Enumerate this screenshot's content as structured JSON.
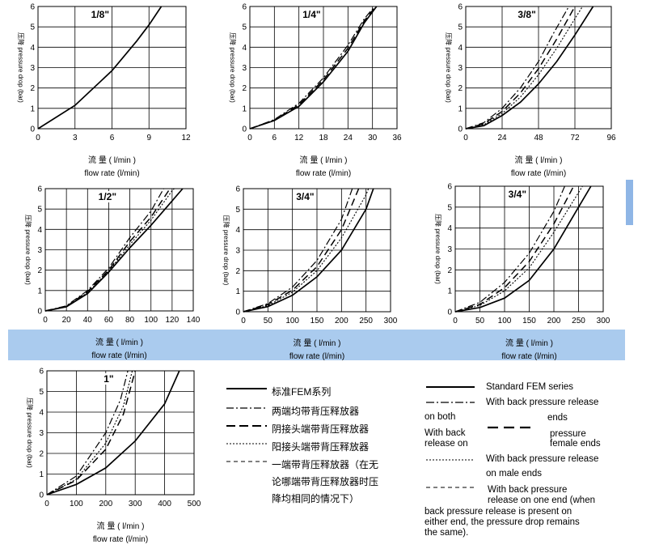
{
  "chart_data": [
    {
      "type": "line",
      "title": "1/8\"",
      "xlabel_cn": "流 量 ( l/min )",
      "xlabel_en": "flow rate (l/min)",
      "ylabel": "压降 pressure drop (bar)",
      "xticks": [
        0,
        3,
        6,
        9,
        12
      ],
      "yticks": [
        0,
        1,
        2,
        3,
        4,
        5,
        6
      ],
      "xlim": [
        0,
        12
      ],
      "ylim": [
        0,
        6
      ],
      "series": [
        {
          "style": "solid",
          "points": [
            [
              0,
              0
            ],
            [
              3,
              1.15
            ],
            [
              6,
              2.85
            ],
            [
              8,
              4.3
            ],
            [
              9,
              5.1
            ],
            [
              10,
              6
            ]
          ]
        }
      ]
    },
    {
      "type": "line",
      "title": "1/4\"",
      "xlabel_cn": "流 量 ( l/min )",
      "xlabel_en": "flow rate (l/min)",
      "ylabel": "压降 pressure drop (bar)",
      "xticks": [
        0,
        6,
        12,
        18,
        24,
        30,
        36
      ],
      "yticks": [
        0,
        1,
        2,
        3,
        4,
        5,
        6
      ],
      "xlim": [
        0,
        36
      ],
      "ylim": [
        0,
        6
      ],
      "series": [
        {
          "style": "solid",
          "points": [
            [
              0,
              0
            ],
            [
              6,
              0.4
            ],
            [
              12,
              1.1
            ],
            [
              18,
              2.3
            ],
            [
              24,
              3.8
            ],
            [
              28,
              5.2
            ],
            [
              31,
              6
            ]
          ]
        },
        {
          "style": "dashdot",
          "points": [
            [
              0,
              0
            ],
            [
              6,
              0.45
            ],
            [
              12,
              1.25
            ],
            [
              18,
              2.5
            ],
            [
              24,
              4.1
            ],
            [
              28,
              5.4
            ],
            [
              30.5,
              6
            ]
          ]
        },
        {
          "style": "dashed",
          "points": [
            [
              0,
              0
            ],
            [
              6,
              0.42
            ],
            [
              12,
              1.18
            ],
            [
              18,
              2.4
            ],
            [
              24,
              3.95
            ],
            [
              28,
              5.3
            ],
            [
              30.8,
              6
            ]
          ]
        }
      ]
    },
    {
      "type": "line",
      "title": "3/8\"",
      "xlabel_cn": "流 量 ( l/min )",
      "xlabel_en": "flow rate (l/min)",
      "ylabel": "压降 pressure drop (bar)",
      "xticks": [
        0,
        24,
        48,
        72,
        96
      ],
      "yticks": [
        0,
        1,
        2,
        3,
        4,
        5,
        6
      ],
      "xlim": [
        0,
        96
      ],
      "ylim": [
        0,
        6
      ],
      "series": [
        {
          "style": "solid",
          "points": [
            [
              0,
              0
            ],
            [
              12,
              0.15
            ],
            [
              24,
              0.65
            ],
            [
              36,
              1.3
            ],
            [
              48,
              2.2
            ],
            [
              60,
              3.3
            ],
            [
              72,
              4.6
            ],
            [
              84,
              6
            ]
          ]
        },
        {
          "style": "dashdot",
          "points": [
            [
              0,
              0
            ],
            [
              12,
              0.3
            ],
            [
              24,
              1.0
            ],
            [
              36,
              2.0
            ],
            [
              48,
              3.3
            ],
            [
              58,
              4.7
            ],
            [
              68,
              6
            ]
          ]
        },
        {
          "style": "dashed",
          "points": [
            [
              0,
              0
            ],
            [
              12,
              0.25
            ],
            [
              24,
              0.85
            ],
            [
              36,
              1.75
            ],
            [
              48,
              2.95
            ],
            [
              60,
              4.4
            ],
            [
              72,
              6
            ]
          ]
        },
        {
          "style": "dotted",
          "points": [
            [
              0,
              0
            ],
            [
              12,
              0.2
            ],
            [
              24,
              0.75
            ],
            [
              36,
              1.55
            ],
            [
              48,
              2.65
            ],
            [
              60,
              3.95
            ],
            [
              72,
              5.4
            ],
            [
              77,
              6
            ]
          ]
        }
      ]
    },
    {
      "type": "line",
      "title": "1/2\"",
      "xlabel_cn": "流 量 ( l/min )",
      "xlabel_en": "flow rate (l/min)",
      "ylabel": "压降 pressure drop (bar)",
      "xticks": [
        0,
        20,
        40,
        60,
        80,
        100,
        120,
        140
      ],
      "yticks": [
        0,
        1,
        2,
        3,
        4,
        5,
        6
      ],
      "xlim": [
        0,
        140
      ],
      "ylim": [
        0,
        6
      ],
      "series": [
        {
          "style": "solid",
          "points": [
            [
              0,
              0
            ],
            [
              20,
              0.2
            ],
            [
              40,
              0.85
            ],
            [
              60,
              1.9
            ],
            [
              80,
              3.1
            ],
            [
              100,
              4.2
            ],
            [
              120,
              5.4
            ],
            [
              130,
              6
            ]
          ]
        },
        {
          "style": "dashdot",
          "points": [
            [
              0,
              0
            ],
            [
              20,
              0.25
            ],
            [
              40,
              1.0
            ],
            [
              60,
              2.1
            ],
            [
              80,
              3.6
            ],
            [
              100,
              4.9
            ],
            [
              112,
              6
            ]
          ]
        },
        {
          "style": "dashed",
          "points": [
            [
              0,
              0
            ],
            [
              20,
              0.22
            ],
            [
              40,
              0.95
            ],
            [
              60,
              2.0
            ],
            [
              80,
              3.4
            ],
            [
              100,
              4.6
            ],
            [
              118,
              6
            ]
          ]
        },
        {
          "style": "dotted",
          "points": [
            [
              0,
              0
            ],
            [
              20,
              0.21
            ],
            [
              40,
              0.9
            ],
            [
              60,
              1.95
            ],
            [
              80,
              3.25
            ],
            [
              100,
              4.45
            ],
            [
              120,
              5.9
            ],
            [
              122,
              6
            ]
          ]
        }
      ]
    },
    {
      "type": "line",
      "title": "3/4\"",
      "xlabel_cn": "流 量 ( l/min )",
      "xlabel_en": "flow rate (l/min)",
      "ylabel": "压降 pressure drop (bar)",
      "xticks": [
        0,
        50,
        100,
        150,
        200,
        250,
        300
      ],
      "yticks": [
        0,
        1,
        2,
        3,
        4,
        5,
        6
      ],
      "xlim": [
        0,
        300
      ],
      "ylim": [
        0,
        6
      ],
      "series": [
        {
          "style": "solid",
          "points": [
            [
              0,
              0
            ],
            [
              50,
              0.25
            ],
            [
              100,
              0.8
            ],
            [
              150,
              1.7
            ],
            [
              200,
              3.0
            ],
            [
              250,
              5.0
            ],
            [
              265,
              6
            ]
          ]
        },
        {
          "style": "dashdot",
          "points": [
            [
              0,
              0
            ],
            [
              50,
              0.4
            ],
            [
              100,
              1.2
            ],
            [
              150,
              2.5
            ],
            [
              200,
              4.5
            ],
            [
              222,
              6
            ]
          ]
        },
        {
          "style": "dashed",
          "points": [
            [
              0,
              0
            ],
            [
              50,
              0.35
            ],
            [
              100,
              1.05
            ],
            [
              150,
              2.2
            ],
            [
              200,
              4.0
            ],
            [
              235,
              6
            ]
          ]
        },
        {
          "style": "dotted",
          "points": [
            [
              0,
              0
            ],
            [
              50,
              0.3
            ],
            [
              100,
              0.95
            ],
            [
              150,
              2.0
            ],
            [
              200,
              3.6
            ],
            [
              250,
              5.7
            ],
            [
              255,
              6
            ]
          ]
        }
      ]
    },
    {
      "type": "line",
      "title": "3/4\"",
      "xlabel_cn": "流 量 ( l/min )",
      "xlabel_en": "flow rate (l/min)",
      "ylabel": "压降 pressure drop (bar)",
      "xticks": [
        0,
        50,
        100,
        150,
        200,
        250,
        300
      ],
      "yticks": [
        0,
        1,
        2,
        3,
        4,
        5,
        6
      ],
      "xlim": [
        0,
        300
      ],
      "ylim": [
        0,
        6
      ],
      "series": [
        {
          "style": "solid",
          "points": [
            [
              0,
              0
            ],
            [
              50,
              0.2
            ],
            [
              100,
              0.65
            ],
            [
              150,
              1.5
            ],
            [
              200,
              3.0
            ],
            [
              250,
              5.0
            ],
            [
              275,
              6
            ]
          ]
        },
        {
          "style": "dashdot",
          "points": [
            [
              0,
              0
            ],
            [
              50,
              0.45
            ],
            [
              100,
              1.4
            ],
            [
              150,
              2.8
            ],
            [
              200,
              4.8
            ],
            [
              222,
              6
            ]
          ]
        },
        {
          "style": "dashed",
          "points": [
            [
              0,
              0
            ],
            [
              50,
              0.35
            ],
            [
              100,
              1.15
            ],
            [
              150,
              2.4
            ],
            [
              200,
              4.2
            ],
            [
              240,
              6
            ]
          ]
        },
        {
          "style": "dotted",
          "points": [
            [
              0,
              0
            ],
            [
              50,
              0.3
            ],
            [
              100,
              1.0
            ],
            [
              150,
              2.1
            ],
            [
              200,
              3.8
            ],
            [
              250,
              5.7
            ],
            [
              258,
              6
            ]
          ]
        }
      ]
    },
    {
      "type": "line",
      "title": "1\"",
      "xlabel_cn": "流 量 ( l/min )",
      "xlabel_en": "flow rate (l/min)",
      "ylabel": "压降 pressure drop (bar)",
      "xticks": [
        0,
        100,
        200,
        300,
        400,
        500
      ],
      "yticks": [
        0,
        1,
        2,
        3,
        4,
        5,
        6
      ],
      "xlim": [
        0,
        500
      ],
      "ylim": [
        0,
        6
      ],
      "series": [
        {
          "style": "solid",
          "points": [
            [
              0,
              0
            ],
            [
              100,
              0.5
            ],
            [
              200,
              1.3
            ],
            [
              300,
              2.6
            ],
            [
              400,
              4.4
            ],
            [
              450,
              6
            ]
          ]
        },
        {
          "style": "dashdot",
          "points": [
            [
              0,
              0
            ],
            [
              100,
              0.9
            ],
            [
              200,
              3.0
            ],
            [
              250,
              4.6
            ],
            [
              275,
              6
            ]
          ]
        },
        {
          "style": "dashed",
          "points": [
            [
              0,
              0
            ],
            [
              100,
              0.7
            ],
            [
              200,
              2.2
            ],
            [
              260,
              3.9
            ],
            [
              300,
              6
            ]
          ]
        },
        {
          "style": "dotted",
          "points": [
            [
              0,
              0
            ],
            [
              100,
              0.75
            ],
            [
              200,
              2.5
            ],
            [
              260,
              4.3
            ],
            [
              290,
              6
            ]
          ]
        }
      ]
    }
  ],
  "legend_cn": [
    {
      "style": "solid",
      "label": "标准FEM系列"
    },
    {
      "style": "dashdot",
      "label": "两端均带背压释放器"
    },
    {
      "style": "dashed",
      "label": "阴接头端带背压释放器"
    },
    {
      "style": "dotted",
      "label": "阳接头端带背压释放器"
    },
    {
      "style": "shortdash",
      "label": "一端带背压释放器（在无"
    },
    {
      "style": "none",
      "label": "论哪端带背压释放器时压"
    },
    {
      "style": "none",
      "label": "降均相同的情况下）"
    }
  ],
  "legend_en": [
    "Standard FEM series",
    "With back pressure release",
    "on both",
    "ends",
    "With back",
    "pressure",
    "release on",
    "female ends",
    "With back pressure release",
    "on male ends",
    "With back pressure",
    "release on one end (when",
    "back pressure release is present on",
    "either end, the pressure drop remains",
    "the same)."
  ]
}
